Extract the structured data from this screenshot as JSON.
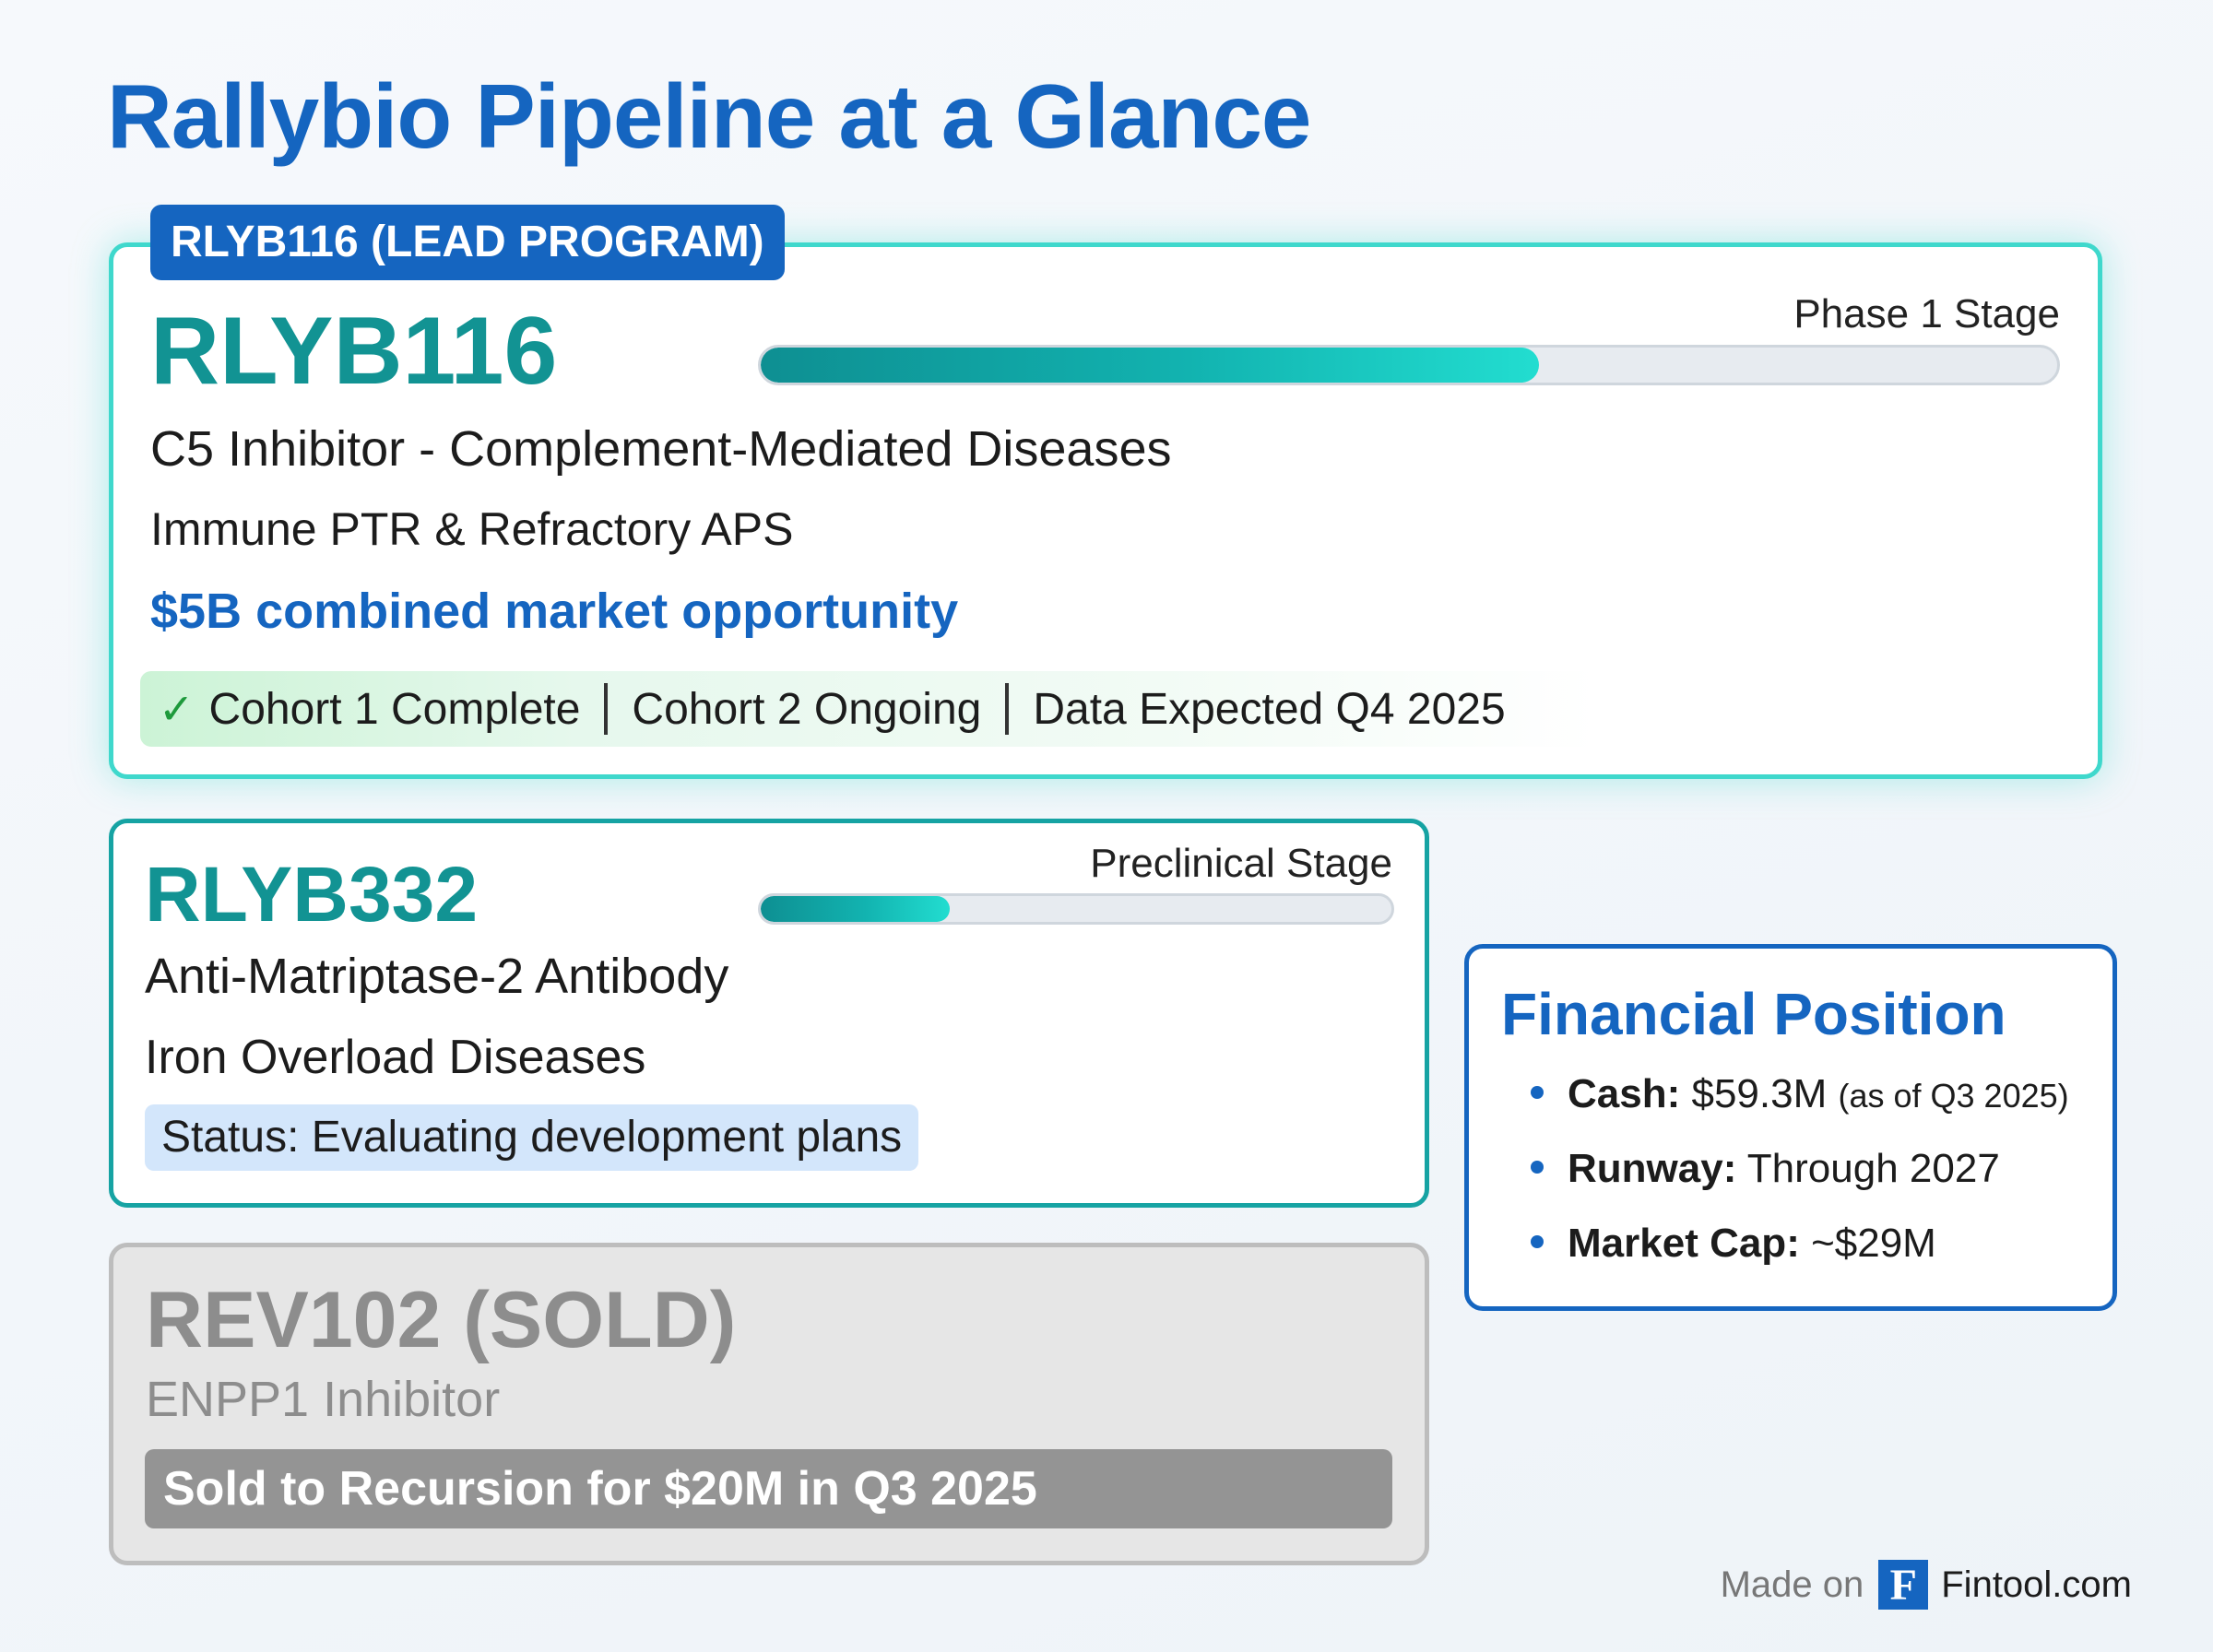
{
  "title": "Rallybio Pipeline at a Glance",
  "lead": {
    "tag": "RLYB116 (LEAD PROGRAM)",
    "name": "RLYB116",
    "stage": "Phase 1 Stage",
    "progress_percent": 60,
    "mechanism": "C5 Inhibitor - Complement-Mediated Diseases",
    "indications": "Immune PTR & Refractory APS",
    "market": "$5B combined market opportunity",
    "milestones": [
      "Cohort 1 Complete",
      "Cohort 2 Ongoing",
      "Data Expected Q4 2025"
    ]
  },
  "rlyb332": {
    "name": "RLYB332",
    "stage": "Preclinical Stage",
    "progress_percent": 30,
    "mechanism": "Anti-Matriptase-2 Antibody",
    "indication": "Iron Overload Diseases",
    "status": "Status: Evaluating development plans"
  },
  "rev102": {
    "name": "REV102 (SOLD)",
    "mechanism": "ENPP1 Inhibitor",
    "note": "Sold to Recursion for $20M in Q3 2025"
  },
  "financial": {
    "title": "Financial Position",
    "cash_label": "Cash:",
    "cash_value": "$59.3M",
    "cash_note": "(as of Q3 2025)",
    "runway_label": "Runway:",
    "runway_value": "Through 2027",
    "mcap_label": "Market Cap:",
    "mcap_value": "~$29M"
  },
  "footer": {
    "made_on": "Made on",
    "logo_letter": "F",
    "brand": "Fintool.com"
  },
  "colors": {
    "brand_blue": "#1565c0",
    "teal": "#129393",
    "cyan": "#3fd8cc"
  }
}
